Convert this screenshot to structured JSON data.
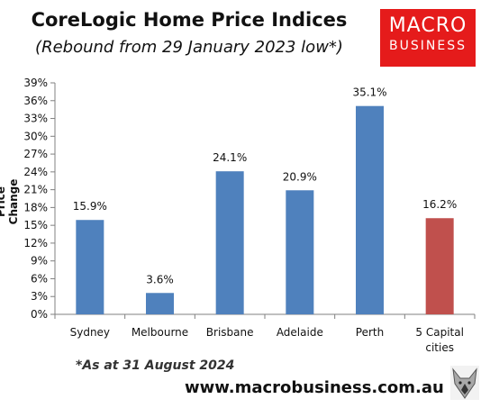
{
  "header": {
    "title": "CoreLogic Home Price Indices",
    "subtitle": "(Rebound from 29 January 2023 low*)"
  },
  "logo": {
    "line1": "MACRO",
    "line2": "BUSINESS",
    "color": "#e51b1b"
  },
  "footer": {
    "note": "*As at 31 August 2024",
    "website": "www.macrobusiness.com.au",
    "mascot_icon": "wolf-icon"
  },
  "chart_data": {
    "type": "bar",
    "title": "CoreLogic Home Price Indices",
    "subtitle": "(Rebound from 29 January 2023 low*)",
    "xlabel": "",
    "ylabel": "Price Change",
    "ylim": [
      0,
      39
    ],
    "yticks": [
      "0%",
      "3%",
      "6%",
      "9%",
      "12%",
      "15%",
      "18%",
      "21%",
      "24%",
      "27%",
      "30%",
      "33%",
      "36%",
      "39%"
    ],
    "categories": [
      "Sydney",
      "Melbourne",
      "Brisbane",
      "Adelaide",
      "Perth",
      "5 Capital cities"
    ],
    "values": [
      15.9,
      3.6,
      24.1,
      20.9,
      35.1,
      16.2
    ],
    "value_labels": [
      "15.9%",
      "3.6%",
      "24.1%",
      "20.9%",
      "35.1%",
      "16.2%"
    ],
    "colors": [
      "#4f81bd",
      "#4f81bd",
      "#4f81bd",
      "#4f81bd",
      "#4f81bd",
      "#c0504d"
    ],
    "grid": false,
    "legend": "none"
  }
}
